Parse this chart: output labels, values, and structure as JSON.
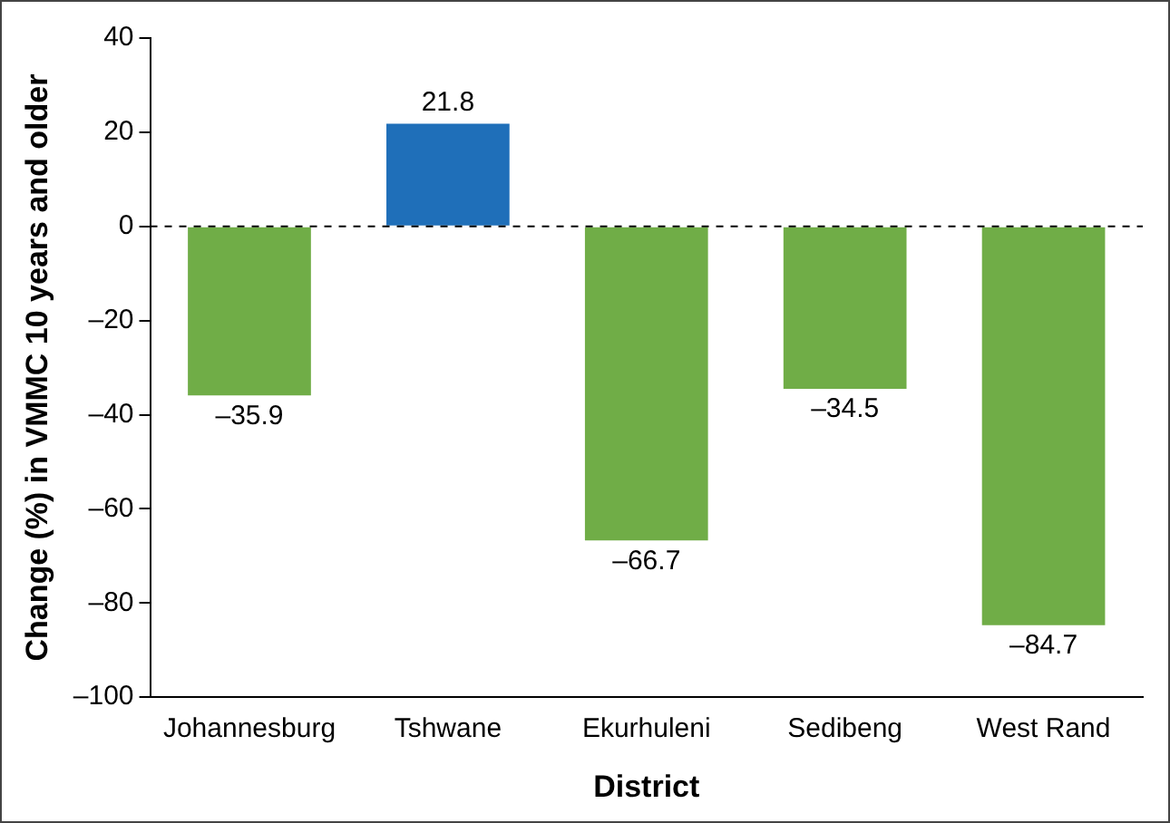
{
  "chart_data": {
    "type": "bar",
    "xlabel": "District",
    "ylabel": "Change (%) in VMMC 10 years and older",
    "categories": [
      "Johannesburg",
      "Tshwane",
      "Ekurhuleni",
      "Sedibeng",
      "West Rand"
    ],
    "values": [
      -35.9,
      21.8,
      -66.7,
      -34.5,
      -84.7
    ],
    "colors": [
      "#70ad47",
      "#1f6fb9",
      "#70ad47",
      "#70ad47",
      "#70ad47"
    ],
    "value_labels": [
      "–35.9",
      "21.8",
      "–66.7",
      "–34.5",
      "–84.7"
    ],
    "ylim": [
      -100,
      40
    ],
    "yticks": [
      {
        "value": -100,
        "label": "–100"
      },
      {
        "value": -80,
        "label": "–80"
      },
      {
        "value": -60,
        "label": "–60"
      },
      {
        "value": -40,
        "label": "–40"
      },
      {
        "value": -20,
        "label": "–20"
      },
      0,
      20,
      40
    ],
    "ref_lines": [
      {
        "axis": "y",
        "value": 0,
        "label": null,
        "color": "#000000",
        "line_style": "dashed"
      }
    ],
    "grid": false,
    "legend": false
  }
}
